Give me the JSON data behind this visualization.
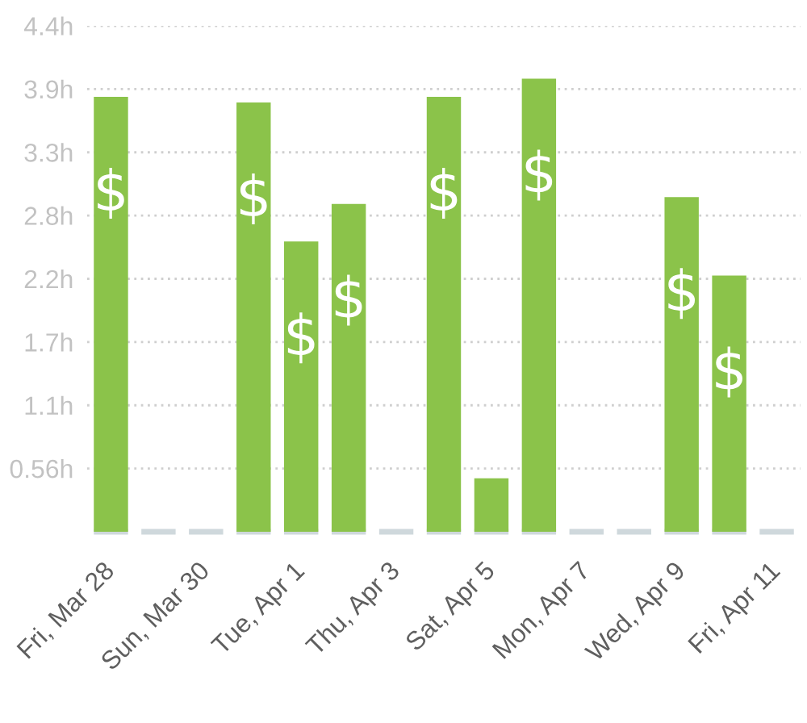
{
  "chart_data": {
    "type": "bar",
    "categories": [
      "Fri, Mar 28",
      null,
      "Sun, Mar 30",
      null,
      "Tue, Apr 1",
      null,
      "Thu, Apr 3",
      null,
      "Sat, Apr 5",
      null,
      "Mon, Apr 7",
      null,
      "Wed, Apr 9",
      null,
      "Fri, Apr 11"
    ],
    "values": [
      3.82,
      0,
      0,
      3.77,
      2.55,
      2.88,
      0,
      3.82,
      0.47,
      3.98,
      0,
      0,
      2.94,
      2.25,
      0
    ],
    "color": "#8bc34a",
    "ylim": [
      0,
      4.444
    ],
    "yticks": [
      {
        "value": 0.556,
        "label": "0.56h"
      },
      {
        "value": 1.111,
        "label": "1.1h"
      },
      {
        "value": 1.667,
        "label": "1.7h"
      },
      {
        "value": 2.222,
        "label": "2.2h"
      },
      {
        "value": 2.778,
        "label": "2.8h"
      },
      {
        "value": 3.333,
        "label": "3.3h"
      },
      {
        "value": 3.889,
        "label": "3.9h"
      },
      {
        "value": 4.444,
        "label": "4.4h"
      }
    ],
    "grid": "y"
  }
}
